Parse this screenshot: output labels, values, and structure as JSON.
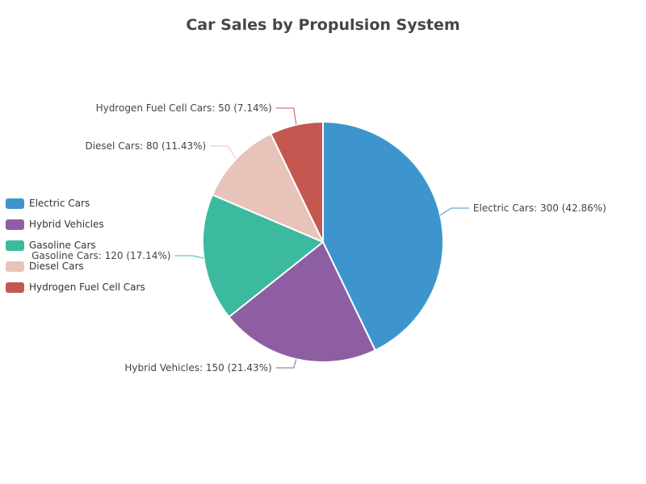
{
  "chart_data": {
    "type": "pie",
    "title": "Car Sales by Propulsion System",
    "legend_position": "left",
    "slices": [
      {
        "name": "Electric Cars",
        "value": 300,
        "label": "Electric Cars: 300 (42.86%)",
        "color": "#3e95cd"
      },
      {
        "name": "Hybrid Vehicles",
        "value": 150,
        "label": "Hybrid Vehicles: 150 (21.43%)",
        "color": "#8e5ea2"
      },
      {
        "name": "Gasoline Cars",
        "value": 120,
        "label": "Gasoline Cars: 120 (17.14%)",
        "color": "#3cba9f"
      },
      {
        "name": "Diesel Cars",
        "value": 80,
        "label": "Diesel Cars: 80 (11.43%)",
        "color": "#e8c3b9"
      },
      {
        "name": "Hydrogen Fuel Cell Cars",
        "value": 50,
        "label": "Hydrogen Fuel Cell Cars: 50 (7.14%)",
        "color": "#c45850"
      }
    ]
  }
}
